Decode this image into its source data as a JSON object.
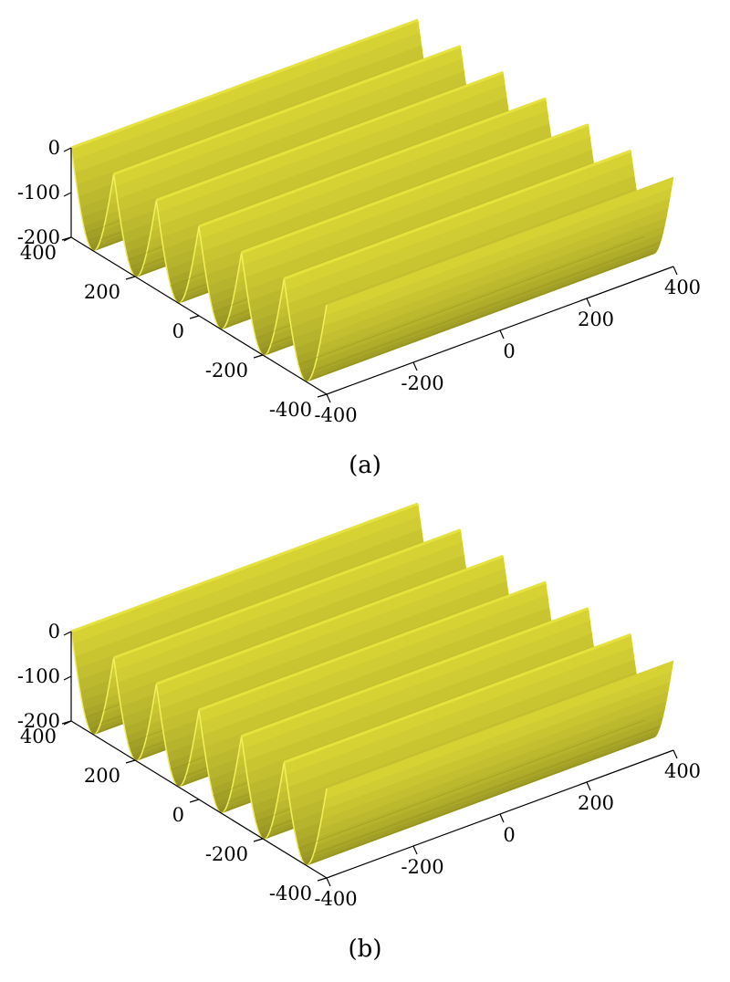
{
  "chart_data": [
    {
      "type": "surface",
      "caption": "(a)",
      "z_ticks": [
        "0",
        "-100",
        "-200"
      ],
      "y_ticks": [
        "400",
        "200",
        "0",
        "-200",
        "-400"
      ],
      "x_ticks": [
        "-400",
        "-200",
        "0",
        "200",
        "400"
      ],
      "xlim": [
        -400,
        400
      ],
      "ylim": [
        -400,
        400
      ],
      "zlim": [
        -200,
        0
      ],
      "ridge_count": 6,
      "surface_color": "#d9d535",
      "edge_color": "#e6e23c",
      "shadow_color": "#8c8a12",
      "trough_color": "#f2f05a",
      "grid": false
    },
    {
      "type": "surface",
      "caption": "(b)",
      "z_ticks": [
        "0",
        "-100",
        "-200"
      ],
      "y_ticks": [
        "400",
        "200",
        "0",
        "-200",
        "-400"
      ],
      "x_ticks": [
        "-400",
        "-200",
        "0",
        "200",
        "400"
      ],
      "xlim": [
        -400,
        400
      ],
      "ylim": [
        -400,
        400
      ],
      "zlim": [
        -200,
        0
      ],
      "ridge_count": 6,
      "surface_color": "#d9d535",
      "edge_color": "#e6e23c",
      "shadow_color": "#8c8a12",
      "trough_color": "#f2f05a",
      "grid": false
    }
  ]
}
